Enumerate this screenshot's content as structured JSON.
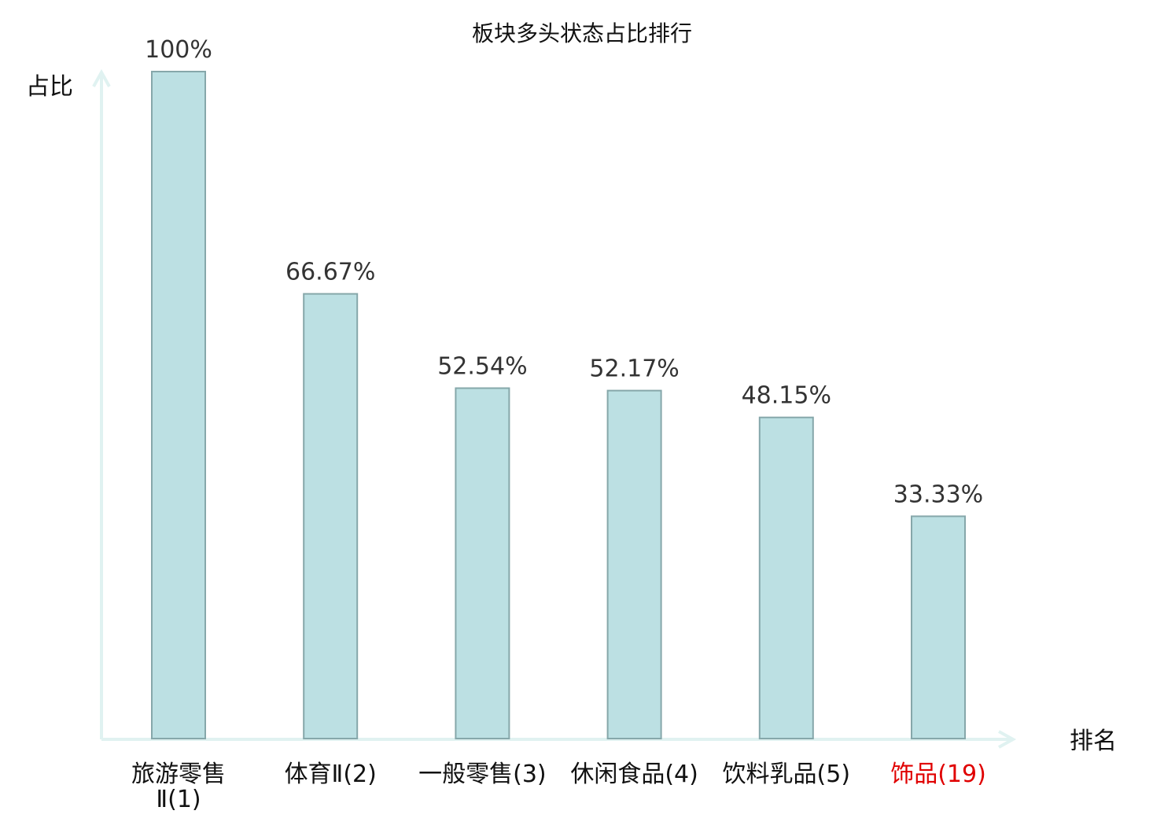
{
  "chart_data": {
    "type": "bar",
    "title": "板块多头状态占比排行",
    "ylabel": "占比",
    "xlabel": "排名",
    "categories": [
      [
        "旅游零售",
        "Ⅱ(1)"
      ],
      [
        "体育Ⅱ(2)"
      ],
      [
        "一般零售(3)"
      ],
      [
        "休闲食品(4)"
      ],
      [
        "饮料乳品(5)"
      ],
      [
        "饰品(19)"
      ]
    ],
    "values": [
      100,
      66.67,
      52.54,
      52.17,
      48.15,
      33.33
    ],
    "value_labels": [
      "100%",
      "66.67%",
      "52.54%",
      "52.17%",
      "48.15%",
      "33.33%"
    ],
    "ylim": [
      0,
      100
    ],
    "grid": false,
    "colors": {
      "bar_fill": "#bce0e3",
      "bar_stroke": "#86a7aa",
      "axis": "#e0f2f1",
      "label_default": "#111111",
      "label_highlight": "#e00000"
    },
    "highlight_index": 5
  }
}
